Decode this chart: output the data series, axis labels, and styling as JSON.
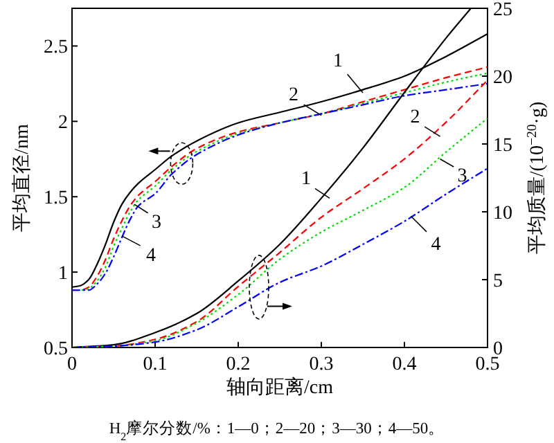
{
  "chart_data": {
    "type": "line",
    "xlabel": "轴向距离/cm",
    "ylabel": "平均直径/nm",
    "y2label": "平均质量/(10$^{−20}$·g)",
    "xlim": [
      0,
      0.5
    ],
    "xticks": [
      0,
      0.1,
      0.2,
      0.3,
      0.4,
      0.5
    ],
    "ylim": [
      0.5,
      2.75
    ],
    "yticks": [
      0.5,
      1.0,
      1.5,
      2.0,
      2.5
    ],
    "y2lim": [
      0,
      25
    ],
    "y2ticks": [
      0,
      5,
      10,
      15,
      20,
      25
    ],
    "grid": false,
    "marker": "none",
    "series": [
      {
        "color": "#000000",
        "line_style": "solid",
        "x": [
          0,
          0.01,
          0.02,
          0.03,
          0.04,
          0.05,
          0.06,
          0.07,
          0.08,
          0.1,
          0.12,
          0.15,
          0.2,
          0.25,
          0.3,
          0.35,
          0.4,
          0.45,
          0.5
        ],
        "values": [
          0.9,
          0.91,
          0.95,
          1.05,
          1.18,
          1.33,
          1.45,
          1.53,
          1.59,
          1.68,
          1.77,
          1.87,
          1.99,
          2.06,
          2.13,
          2.21,
          2.3,
          2.43,
          2.58
        ]
      },
      {
        "color": "#ff0000",
        "line_style": "dashed",
        "x": [
          0,
          0.01,
          0.02,
          0.03,
          0.04,
          0.05,
          0.06,
          0.07,
          0.08,
          0.1,
          0.12,
          0.15,
          0.2,
          0.25,
          0.3,
          0.35,
          0.4,
          0.45,
          0.5
        ],
        "values": [
          0.88,
          0.88,
          0.9,
          0.97,
          1.08,
          1.22,
          1.34,
          1.44,
          1.51,
          1.6,
          1.7,
          1.82,
          1.93,
          1.99,
          2.05,
          2.13,
          2.21,
          2.29,
          2.36
        ]
      },
      {
        "color": "#00dd00",
        "line_style": "dotted",
        "x": [
          0,
          0.01,
          0.02,
          0.03,
          0.04,
          0.05,
          0.06,
          0.07,
          0.08,
          0.1,
          0.12,
          0.15,
          0.2,
          0.25,
          0.3,
          0.35,
          0.4,
          0.45,
          0.5
        ],
        "values": [
          0.88,
          0.88,
          0.89,
          0.94,
          1.03,
          1.17,
          1.29,
          1.4,
          1.48,
          1.57,
          1.68,
          1.8,
          1.92,
          1.99,
          2.05,
          2.12,
          2.19,
          2.26,
          2.32
        ]
      },
      {
        "color": "#0000ff",
        "line_style": "dashdot",
        "x": [
          0,
          0.01,
          0.02,
          0.03,
          0.04,
          0.05,
          0.06,
          0.07,
          0.08,
          0.1,
          0.12,
          0.15,
          0.2,
          0.25,
          0.3,
          0.35,
          0.4,
          0.45,
          0.5
        ],
        "values": [
          0.88,
          0.88,
          0.88,
          0.92,
          0.99,
          1.1,
          1.23,
          1.35,
          1.44,
          1.52,
          1.65,
          1.78,
          1.91,
          1.99,
          2.05,
          2.11,
          2.17,
          2.21,
          2.25
        ]
      },
      {
        "color": "#000000",
        "line_style": "solid",
        "axis": "y2",
        "x": [
          0,
          0.05,
          0.1,
          0.15,
          0.2,
          0.25,
          0.3,
          0.35,
          0.4,
          0.45,
          0.48
        ],
        "values": [
          0,
          0.2,
          1.1,
          2.5,
          4.9,
          7.6,
          11,
          14.7,
          18.8,
          22.8,
          25
        ]
      },
      {
        "color": "#ff0000",
        "line_style": "dashed",
        "axis": "y2",
        "x": [
          0,
          0.05,
          0.1,
          0.15,
          0.2,
          0.25,
          0.3,
          0.35,
          0.4,
          0.45,
          0.5
        ],
        "values": [
          0,
          0.1,
          0.6,
          1.9,
          4.5,
          7,
          9.6,
          11.7,
          13.9,
          16.6,
          19.7
        ]
      },
      {
        "color": "#00dd00",
        "line_style": "dotted",
        "axis": "y2",
        "x": [
          0,
          0.05,
          0.1,
          0.15,
          0.2,
          0.25,
          0.3,
          0.35,
          0.4,
          0.45,
          0.5
        ],
        "values": [
          0,
          0.1,
          0.5,
          1.8,
          3.9,
          6.5,
          8.5,
          10.1,
          11.8,
          14.4,
          16.9
        ]
      },
      {
        "color": "#0000ff",
        "line_style": "dashdot",
        "axis": "y2",
        "x": [
          0,
          0.05,
          0.1,
          0.15,
          0.2,
          0.25,
          0.3,
          0.35,
          0.4,
          0.45,
          0.5
        ],
        "values": [
          0,
          0.1,
          0.4,
          1.3,
          3.0,
          4.8,
          6.0,
          7.6,
          9.3,
          11.3,
          13.2
        ]
      }
    ],
    "annotations": [
      {
        "text": "1",
        "x": 0.35,
        "y": 2.19
      },
      {
        "text": "2",
        "x": 0.3,
        "y": 2.04
      },
      {
        "text": "3",
        "x": 0.075,
        "y": 1.45
      },
      {
        "text": "4",
        "x": 0.06,
        "y": 1.24
      },
      {
        "text": "1",
        "x": 0.31,
        "y": 1.49
      },
      {
        "text": "2",
        "x": 0.443,
        "y": 1.9
      },
      {
        "text": "3",
        "x": 0.443,
        "y": 1.75
      },
      {
        "text": "4",
        "x": 0.408,
        "y": 1.37
      },
      "H$_{2}$摩尔分数/%：1—0；2—20；3—30；4—50。"
    ]
  }
}
